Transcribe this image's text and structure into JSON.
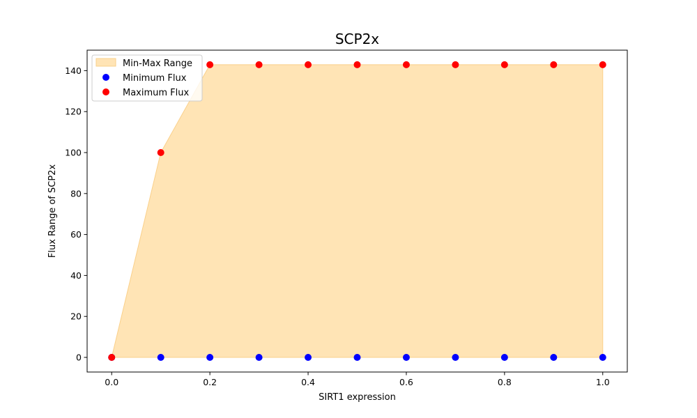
{
  "chart_data": {
    "type": "scatter",
    "title": "SCP2x",
    "xlabel": "SIRT1 expression",
    "ylabel": "Flux Range of SCP2x",
    "xlim": [
      -0.05,
      1.05
    ],
    "ylim": [
      -7.14,
      150
    ],
    "x_ticks": [
      0.0,
      0.2,
      0.4,
      0.6,
      0.8,
      1.0
    ],
    "x_tick_labels": [
      "0.0",
      "0.2",
      "0.4",
      "0.6",
      "0.8",
      "1.0"
    ],
    "y_ticks": [
      0,
      20,
      40,
      60,
      80,
      100,
      120,
      140
    ],
    "y_tick_labels": [
      "0",
      "20",
      "40",
      "60",
      "80",
      "100",
      "120",
      "140"
    ],
    "x": [
      0.0,
      0.1,
      0.2,
      0.3,
      0.4,
      0.5,
      0.6,
      0.7,
      0.8,
      0.9,
      1.0
    ],
    "fill_between": {
      "name": "Min-Max Range",
      "color": "#FFE4B5",
      "edge_color": "#FAD08A"
    },
    "series": [
      {
        "name": "Minimum Flux",
        "color": "#0000FF",
        "values": [
          0,
          0,
          0,
          0,
          0,
          0,
          0,
          0,
          0,
          0,
          0
        ]
      },
      {
        "name": "Maximum Flux",
        "color": "#FF0000",
        "values": [
          0,
          100,
          142.9,
          142.9,
          142.9,
          142.9,
          142.9,
          142.9,
          142.9,
          142.9,
          142.9
        ]
      }
    ],
    "legend": {
      "placement": "upper-left",
      "entries": [
        "Min-Max Range",
        "Minimum Flux",
        "Maximum Flux"
      ]
    },
    "grid": false
  }
}
